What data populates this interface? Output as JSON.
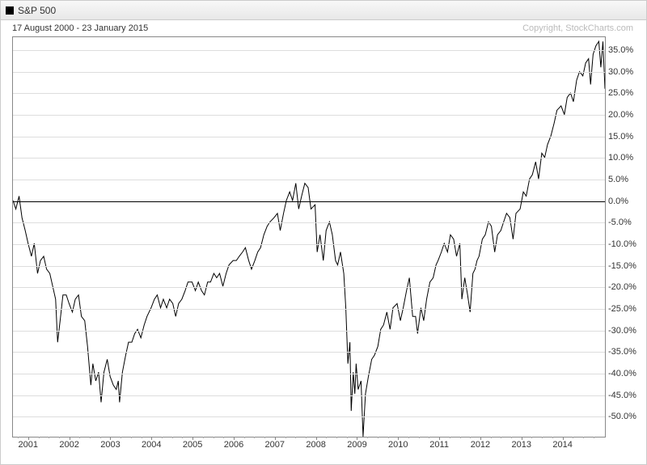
{
  "header": {
    "legend_label": "S&P 500"
  },
  "subtitle": {
    "date_range": "17 August 2000 - 23 January 2015",
    "copyright": "Copyright, StockCharts.com"
  },
  "chart": {
    "type": "line",
    "background_color": "#ffffff",
    "grid_color": "#dddddd",
    "axis_color": "#888888",
    "zero_line_color": "#000000",
    "line_color": "#000000",
    "line_width": 1,
    "label_fontsize": 11,
    "x_start_year": 2000.63,
    "x_end_year": 2015.07,
    "ylim": [
      -55,
      38
    ],
    "y_ticks": [
      -50,
      -45,
      -40,
      -35,
      -30,
      -25,
      -20,
      -15,
      -10,
      -5,
      0,
      5,
      10,
      15,
      20,
      25,
      30,
      35
    ],
    "y_tick_labels": [
      "-50.0%",
      "-45.0%",
      "-40.0%",
      "-35.0%",
      "-30.0%",
      "-25.0%",
      "-20.0%",
      "-15.0%",
      "-10.0%",
      "-5.0%",
      "0.0%",
      "5.0%",
      "10.0%",
      "15.0%",
      "20.0%",
      "25.0%",
      "30.0%",
      "35.0%"
    ],
    "x_tick_years": [
      2001,
      2002,
      2003,
      2004,
      2005,
      2006,
      2007,
      2008,
      2009,
      2010,
      2011,
      2012,
      2013,
      2014
    ],
    "minor_ticks_per_year": 4,
    "series": [
      [
        2000.63,
        0
      ],
      [
        2000.7,
        -2
      ],
      [
        2000.78,
        1
      ],
      [
        2000.85,
        -4
      ],
      [
        2000.93,
        -7
      ],
      [
        2001,
        -10
      ],
      [
        2001.08,
        -13
      ],
      [
        2001.15,
        -10
      ],
      [
        2001.23,
        -17
      ],
      [
        2001.3,
        -14
      ],
      [
        2001.38,
        -13
      ],
      [
        2001.45,
        -16
      ],
      [
        2001.53,
        -17
      ],
      [
        2001.6,
        -20
      ],
      [
        2001.67,
        -23
      ],
      [
        2001.72,
        -33
      ],
      [
        2001.78,
        -28
      ],
      [
        2001.85,
        -22
      ],
      [
        2001.93,
        -22
      ],
      [
        2002,
        -24
      ],
      [
        2002.08,
        -26
      ],
      [
        2002.15,
        -23
      ],
      [
        2002.23,
        -22
      ],
      [
        2002.3,
        -27
      ],
      [
        2002.38,
        -28
      ],
      [
        2002.45,
        -34
      ],
      [
        2002.53,
        -43
      ],
      [
        2002.58,
        -38
      ],
      [
        2002.65,
        -42
      ],
      [
        2002.72,
        -40
      ],
      [
        2002.78,
        -47
      ],
      [
        2002.85,
        -40
      ],
      [
        2002.93,
        -37
      ],
      [
        2003,
        -41
      ],
      [
        2003.08,
        -43
      ],
      [
        2003.15,
        -44
      ],
      [
        2003.2,
        -42
      ],
      [
        2003.23,
        -47
      ],
      [
        2003.3,
        -40
      ],
      [
        2003.38,
        -36
      ],
      [
        2003.45,
        -33
      ],
      [
        2003.53,
        -33
      ],
      [
        2003.6,
        -31
      ],
      [
        2003.67,
        -30
      ],
      [
        2003.75,
        -32
      ],
      [
        2003.83,
        -29
      ],
      [
        2003.9,
        -27
      ],
      [
        2004,
        -25
      ],
      [
        2004.08,
        -23
      ],
      [
        2004.15,
        -22
      ],
      [
        2004.23,
        -25
      ],
      [
        2004.3,
        -23
      ],
      [
        2004.38,
        -25
      ],
      [
        2004.45,
        -23
      ],
      [
        2004.53,
        -24
      ],
      [
        2004.6,
        -27
      ],
      [
        2004.67,
        -24
      ],
      [
        2004.75,
        -23
      ],
      [
        2004.83,
        -21
      ],
      [
        2004.9,
        -19
      ],
      [
        2005,
        -19
      ],
      [
        2005.08,
        -21
      ],
      [
        2005.15,
        -19
      ],
      [
        2005.23,
        -21
      ],
      [
        2005.3,
        -22
      ],
      [
        2005.38,
        -19
      ],
      [
        2005.45,
        -19
      ],
      [
        2005.53,
        -17
      ],
      [
        2005.6,
        -18
      ],
      [
        2005.67,
        -17
      ],
      [
        2005.75,
        -20
      ],
      [
        2005.83,
        -17
      ],
      [
        2005.9,
        -15
      ],
      [
        2006,
        -14
      ],
      [
        2006.08,
        -14
      ],
      [
        2006.15,
        -13
      ],
      [
        2006.23,
        -12
      ],
      [
        2006.3,
        -11
      ],
      [
        2006.38,
        -14
      ],
      [
        2006.45,
        -16
      ],
      [
        2006.53,
        -14
      ],
      [
        2006.6,
        -12
      ],
      [
        2006.67,
        -11
      ],
      [
        2006.75,
        -8
      ],
      [
        2006.83,
        -6
      ],
      [
        2006.9,
        -5
      ],
      [
        2007,
        -4
      ],
      [
        2007.08,
        -3
      ],
      [
        2007.15,
        -7
      ],
      [
        2007.23,
        -3
      ],
      [
        2007.3,
        0
      ],
      [
        2007.38,
        2
      ],
      [
        2007.45,
        0
      ],
      [
        2007.53,
        4
      ],
      [
        2007.6,
        -2
      ],
      [
        2007.67,
        1
      ],
      [
        2007.75,
        4
      ],
      [
        2007.83,
        3
      ],
      [
        2007.9,
        -2
      ],
      [
        2008,
        -1
      ],
      [
        2008.05,
        -12
      ],
      [
        2008.12,
        -8
      ],
      [
        2008.2,
        -14
      ],
      [
        2008.27,
        -7
      ],
      [
        2008.35,
        -5
      ],
      [
        2008.42,
        -8
      ],
      [
        2008.5,
        -14
      ],
      [
        2008.55,
        -15
      ],
      [
        2008.62,
        -12
      ],
      [
        2008.7,
        -17
      ],
      [
        2008.75,
        -25
      ],
      [
        2008.8,
        -38
      ],
      [
        2008.85,
        -33
      ],
      [
        2008.88,
        -49
      ],
      [
        2008.93,
        -40
      ],
      [
        2008.97,
        -45
      ],
      [
        2009,
        -38
      ],
      [
        2009.05,
        -44
      ],
      [
        2009.12,
        -42
      ],
      [
        2009.17,
        -55
      ],
      [
        2009.23,
        -45
      ],
      [
        2009.3,
        -41
      ],
      [
        2009.38,
        -37
      ],
      [
        2009.45,
        -36
      ],
      [
        2009.53,
        -34
      ],
      [
        2009.6,
        -30
      ],
      [
        2009.67,
        -29
      ],
      [
        2009.75,
        -26
      ],
      [
        2009.83,
        -30
      ],
      [
        2009.9,
        -25
      ],
      [
        2010,
        -24
      ],
      [
        2010.08,
        -28
      ],
      [
        2010.15,
        -25
      ],
      [
        2010.23,
        -21
      ],
      [
        2010.3,
        -18
      ],
      [
        2010.38,
        -27
      ],
      [
        2010.45,
        -27
      ],
      [
        2010.5,
        -31
      ],
      [
        2010.58,
        -25
      ],
      [
        2010.65,
        -28
      ],
      [
        2010.72,
        -23
      ],
      [
        2010.8,
        -19
      ],
      [
        2010.88,
        -18
      ],
      [
        2010.95,
        -15
      ],
      [
        2011,
        -14
      ],
      [
        2011.08,
        -12
      ],
      [
        2011.15,
        -10
      ],
      [
        2011.23,
        -12
      ],
      [
        2011.3,
        -8
      ],
      [
        2011.38,
        -9
      ],
      [
        2011.45,
        -13
      ],
      [
        2011.53,
        -10
      ],
      [
        2011.58,
        -23
      ],
      [
        2011.65,
        -18
      ],
      [
        2011.72,
        -22
      ],
      [
        2011.78,
        -26
      ],
      [
        2011.85,
        -17
      ],
      [
        2011.9,
        -16
      ],
      [
        2011.95,
        -14
      ],
      [
        2012,
        -13
      ],
      [
        2012.08,
        -9
      ],
      [
        2012.15,
        -8
      ],
      [
        2012.23,
        -5
      ],
      [
        2012.3,
        -6
      ],
      [
        2012.38,
        -12
      ],
      [
        2012.45,
        -8
      ],
      [
        2012.53,
        -7
      ],
      [
        2012.6,
        -5
      ],
      [
        2012.67,
        -3
      ],
      [
        2012.75,
        -4
      ],
      [
        2012.83,
        -9
      ],
      [
        2012.9,
        -3
      ],
      [
        2013,
        -2
      ],
      [
        2013.08,
        2
      ],
      [
        2013.15,
        1
      ],
      [
        2013.23,
        5
      ],
      [
        2013.3,
        6
      ],
      [
        2013.38,
        9
      ],
      [
        2013.45,
        5
      ],
      [
        2013.53,
        11
      ],
      [
        2013.6,
        10
      ],
      [
        2013.67,
        13
      ],
      [
        2013.75,
        15
      ],
      [
        2013.83,
        18
      ],
      [
        2013.9,
        21
      ],
      [
        2014,
        22
      ],
      [
        2014.08,
        20
      ],
      [
        2014.15,
        24
      ],
      [
        2014.23,
        25
      ],
      [
        2014.3,
        23
      ],
      [
        2014.38,
        28
      ],
      [
        2014.45,
        30
      ],
      [
        2014.53,
        29
      ],
      [
        2014.6,
        32
      ],
      [
        2014.67,
        33
      ],
      [
        2014.72,
        27
      ],
      [
        2014.78,
        34
      ],
      [
        2014.85,
        36
      ],
      [
        2014.92,
        37
      ],
      [
        2014.97,
        31
      ],
      [
        2015.02,
        37
      ],
      [
        2015.07,
        26
      ]
    ]
  }
}
